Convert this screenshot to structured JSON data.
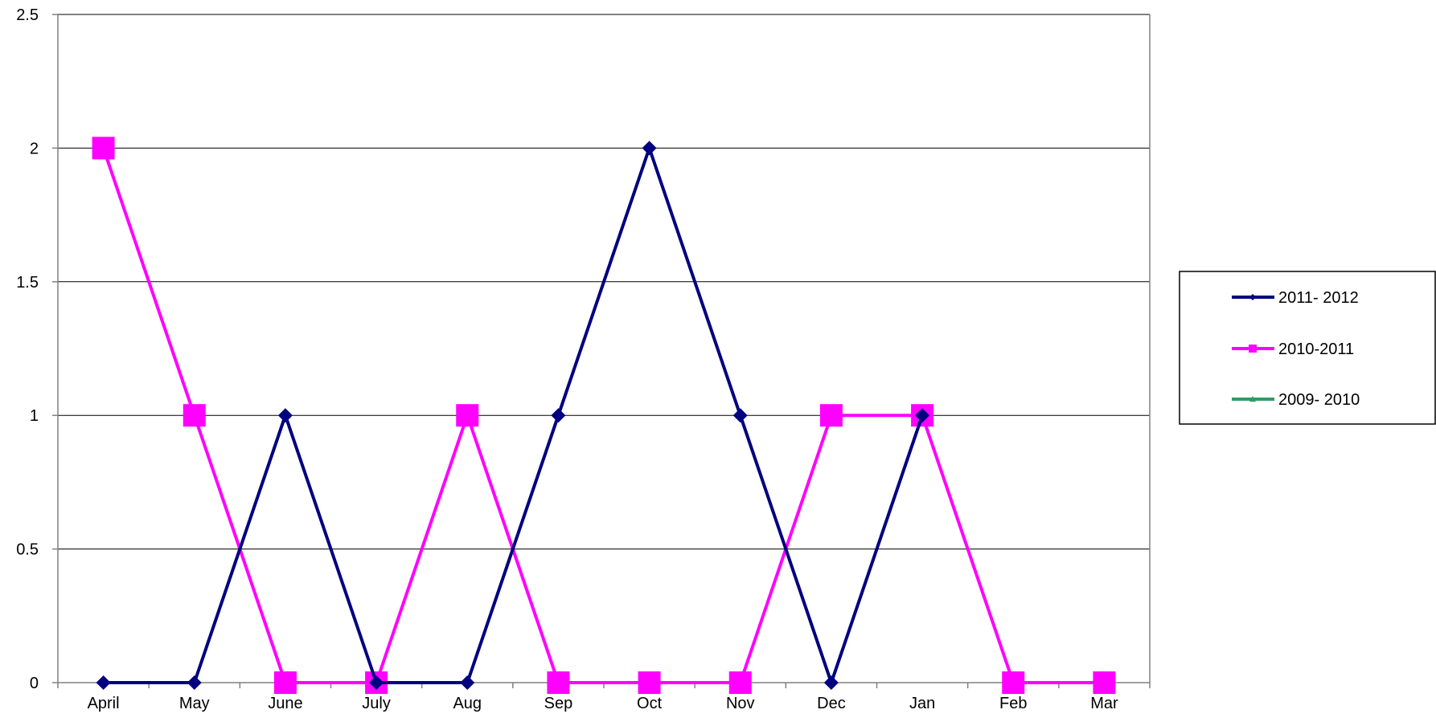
{
  "chart_data": {
    "type": "line",
    "title": "",
    "xlabel": "",
    "ylabel": "",
    "categories": [
      "April",
      "May",
      "June",
      "July",
      "Aug",
      "Sep",
      "Oct",
      "Nov",
      "Dec",
      "Jan",
      "Feb",
      "Mar"
    ],
    "ylim": [
      0,
      2.5
    ],
    "yticks": [
      "0",
      "0.5",
      "1",
      "1.5",
      "2",
      "2.5"
    ],
    "grid": "horizontal",
    "legend_position": "right",
    "series": [
      {
        "name": "2011- 2012",
        "color": "#000080",
        "marker": "diamond",
        "values": [
          0,
          0,
          1,
          0,
          0,
          1,
          2,
          1,
          0,
          1,
          null,
          null
        ]
      },
      {
        "name": "2010-2011",
        "color": "#ff00ff",
        "marker": "square",
        "values": [
          2,
          1,
          0,
          0,
          1,
          0,
          0,
          0,
          1,
          1,
          0,
          0
        ]
      },
      {
        "name": "2009- 2010",
        "color": "#339966",
        "marker": "triangle",
        "values": [
          null,
          null,
          null,
          null,
          null,
          null,
          null,
          null,
          null,
          null,
          null,
          null
        ]
      }
    ]
  }
}
